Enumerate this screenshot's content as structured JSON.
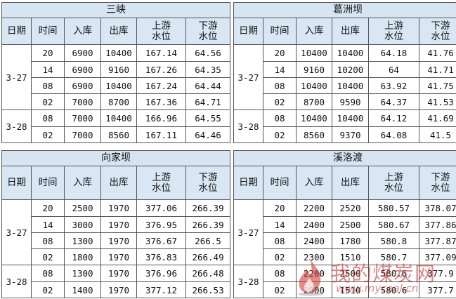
{
  "headers": {
    "date": "日期",
    "time": "时间",
    "inflow": "入库",
    "outflow": "出库",
    "upstream": [
      "上游",
      "水位"
    ],
    "downstream": [
      "下游",
      "水位"
    ]
  },
  "panels": [
    {
      "id": "sanxia",
      "title": "三峡",
      "groups": [
        {
          "date": "3-27",
          "rows": [
            [
              "20",
              "6900",
              "10400",
              "167.14",
              "64.56"
            ],
            [
              "14",
              "6900",
              "9160",
              "167.26",
              "64.35"
            ],
            [
              "08",
              "6900",
              "10400",
              "167.24",
              "64.44"
            ],
            [
              "02",
              "7000",
              "8700",
              "167.36",
              "64.71"
            ]
          ]
        },
        {
          "date": "3-28",
          "rows": [
            [
              "08",
              "7000",
              "10400",
              "166.96",
              "64.55"
            ],
            [
              "02",
              "7000",
              "8560",
              "167.11",
              "64.46"
            ]
          ]
        }
      ]
    },
    {
      "id": "gezhouba",
      "title": "葛洲坝",
      "groups": [
        {
          "date": "3-27",
          "rows": [
            [
              "20",
              "10400",
              "10400",
              "64.18",
              "41.76"
            ],
            [
              "14",
              "9160",
              "10200",
              "64",
              "41.71"
            ],
            [
              "08",
              "10400",
              "10400",
              "63.92",
              "41.75"
            ],
            [
              "02",
              "8700",
              "9590",
              "64.37",
              "41.53"
            ]
          ]
        },
        {
          "date": "3-28",
          "rows": [
            [
              "08",
              "10400",
              "10400",
              "64.12",
              "41.69"
            ],
            [
              "02",
              "8560",
              "9370",
              "64.08",
              "41.5"
            ]
          ]
        }
      ]
    },
    {
      "id": "xiangjiaba",
      "title": "向家坝",
      "groups": [
        {
          "date": "3-27",
          "rows": [
            [
              "20",
              "2500",
              "1970",
              "377.06",
              "266.39"
            ],
            [
              "14",
              "3000",
              "1970",
              "376.95",
              "266.39"
            ],
            [
              "08",
              "1300",
              "1970",
              "376.67",
              "266.5"
            ],
            [
              "02",
              "1800",
              "1970",
              "376.83",
              "266.49"
            ]
          ]
        },
        {
          "date": "3-28",
          "rows": [
            [
              "08",
              "1300",
              "1970",
              "376.96",
              "266.48"
            ],
            [
              "02",
              "1400",
              "1970",
              "377.12",
              "266.53"
            ]
          ]
        }
      ]
    },
    {
      "id": "xiluodu",
      "title": "溪洛渡",
      "groups": [
        {
          "date": "3-27",
          "rows": [
            [
              "20",
              "2200",
              "2520",
              "580.57",
              "378.07"
            ],
            [
              "14",
              "2400",
              "2500",
              "580.67",
              "377.86"
            ],
            [
              "08",
              "2400",
              "1780",
              "580.8",
              "377.87"
            ],
            [
              "02",
              "2300",
              "1510",
              "580.7",
              "377.09"
            ]
          ]
        },
        {
          "date": "3-28",
          "rows": [
            [
              "08",
              "2200",
              "2500",
              "580.6",
              "377.9"
            ],
            [
              "02",
              "2000",
              "1510",
              "580.6",
              "377.7"
            ]
          ]
        }
      ]
    }
  ],
  "watermark": {
    "text": "我的煤炭网",
    "url": "www.mycoal.cn"
  }
}
